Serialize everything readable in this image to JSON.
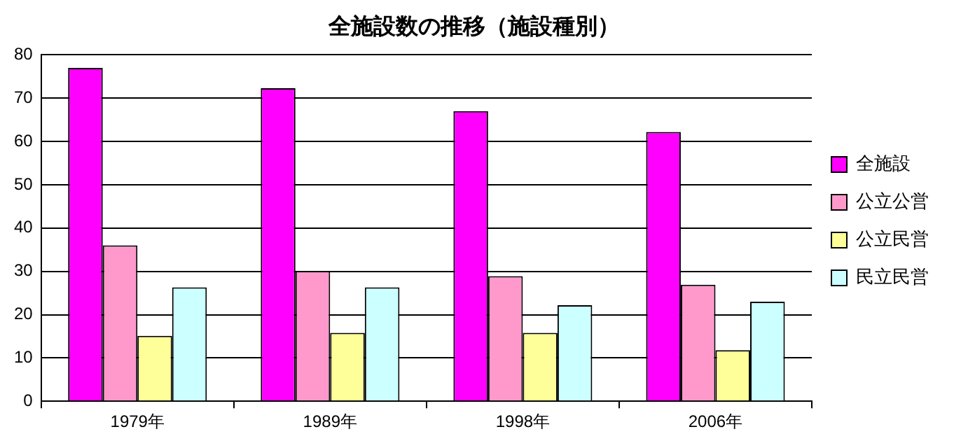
{
  "chart_data": {
    "type": "bar",
    "title": "全施設数の推移（施設種別）",
    "categories": [
      "1979年",
      "1989年",
      "1998年",
      "2006年"
    ],
    "series": [
      {
        "name": "全施設",
        "color": "#ff00ff",
        "values": [
          77,
          72.3,
          67,
          62.2
        ]
      },
      {
        "name": "公立公営",
        "color": "#ff99cc",
        "values": [
          36,
          30.1,
          28.9,
          26.9
        ]
      },
      {
        "name": "公立民営",
        "color": "#ffff99",
        "values": [
          15.1,
          15.8,
          15.8,
          11.8
        ]
      },
      {
        "name": "民立民営",
        "color": "#ccffff",
        "values": [
          26.3,
          26.3,
          22.2,
          23
        ]
      }
    ],
    "ylim": [
      0,
      80
    ],
    "yticks": [
      0,
      10,
      20,
      30,
      40,
      50,
      60,
      70,
      80
    ],
    "grid": "y",
    "legend": "right"
  }
}
